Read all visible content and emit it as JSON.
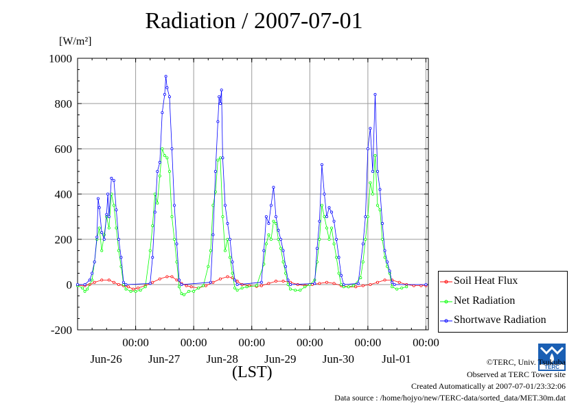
{
  "chart_data": {
    "type": "line",
    "title": "Radiation / 2007-07-01",
    "ylabel_unit": "[W/m²]",
    "xlabel": "(LST)",
    "ylim": [
      -200,
      1000
    ],
    "yticks": [
      "1000",
      "800",
      "600",
      "400",
      "200",
      "0",
      "-200"
    ],
    "xticks": [
      {
        "time": "00:00",
        "date": "Jun-26"
      },
      {
        "time": "00:00",
        "date": "Jun-27"
      },
      {
        "time": "00:00",
        "date": "Jun-28"
      },
      {
        "time": "00:00",
        "date": "Jun-29"
      },
      {
        "time": "00:00",
        "date": "Jun-30"
      },
      {
        "time": "00:00",
        "date": "Jul-01"
      }
    ],
    "x_unit": "hours from 2007-06-25 00:00 LST",
    "xlim": [
      0,
      145
    ],
    "grid": true,
    "legend_position": "bottom-right",
    "series": [
      {
        "name": "Soil Heat Flux",
        "color": "#ff0000",
        "marker": "circle",
        "values": [
          [
            0,
            -5
          ],
          [
            3,
            -5
          ],
          [
            5,
            0
          ],
          [
            7,
            10
          ],
          [
            10,
            20
          ],
          [
            13,
            20
          ],
          [
            15,
            10
          ],
          [
            17,
            0
          ],
          [
            19,
            -5
          ],
          [
            21,
            -10
          ],
          [
            23,
            -20
          ],
          [
            25,
            -15
          ],
          [
            28,
            -5
          ],
          [
            31,
            10
          ],
          [
            34,
            25
          ],
          [
            37,
            35
          ],
          [
            39,
            35
          ],
          [
            41,
            20
          ],
          [
            43,
            5
          ],
          [
            45,
            -5
          ],
          [
            47,
            -10
          ],
          [
            50,
            -15
          ],
          [
            53,
            -5
          ],
          [
            56,
            10
          ],
          [
            59,
            25
          ],
          [
            62,
            35
          ],
          [
            64,
            30
          ],
          [
            66,
            15
          ],
          [
            68,
            0
          ],
          [
            71,
            -5
          ],
          [
            74,
            -8
          ],
          [
            76,
            -5
          ],
          [
            79,
            5
          ],
          [
            82,
            15
          ],
          [
            85,
            15
          ],
          [
            88,
            10
          ],
          [
            91,
            0
          ],
          [
            94,
            -5
          ],
          [
            97,
            0
          ],
          [
            100,
            5
          ],
          [
            103,
            10
          ],
          [
            106,
            5
          ],
          [
            109,
            -5
          ],
          [
            112,
            -10
          ],
          [
            115,
            -10
          ],
          [
            118,
            -5
          ],
          [
            121,
            0
          ],
          [
            124,
            10
          ],
          [
            127,
            20
          ],
          [
            130,
            20
          ],
          [
            133,
            10
          ],
          [
            136,
            0
          ],
          [
            139,
            -5
          ],
          [
            142,
            -5
          ],
          [
            144,
            -5
          ]
        ]
      },
      {
        "name": "Net Radiation",
        "color": "#00ff00",
        "marker": "circle",
        "values": [
          [
            0,
            -5
          ],
          [
            2,
            -15
          ],
          [
            3,
            -30
          ],
          [
            4,
            -20
          ],
          [
            6,
            20
          ],
          [
            7,
            100
          ],
          [
            8,
            200
          ],
          [
            9,
            250
          ],
          [
            10,
            150
          ],
          [
            11,
            220
          ],
          [
            12,
            300
          ],
          [
            13,
            250
          ],
          [
            14,
            400
          ],
          [
            15,
            350
          ],
          [
            16,
            250
          ],
          [
            17,
            150
          ],
          [
            18,
            80
          ],
          [
            19,
            0
          ],
          [
            20,
            -20
          ],
          [
            22,
            -30
          ],
          [
            24,
            -30
          ],
          [
            26,
            -25
          ],
          [
            28,
            -10
          ],
          [
            30,
            150
          ],
          [
            31,
            260
          ],
          [
            32,
            400
          ],
          [
            33,
            360
          ],
          [
            34,
            480
          ],
          [
            35,
            600
          ],
          [
            36,
            570
          ],
          [
            37,
            560
          ],
          [
            38,
            500
          ],
          [
            39,
            300
          ],
          [
            40,
            200
          ],
          [
            41,
            100
          ],
          [
            42,
            -10
          ],
          [
            43,
            -40
          ],
          [
            44,
            -45
          ],
          [
            46,
            -30
          ],
          [
            48,
            -30
          ],
          [
            50,
            -15
          ],
          [
            52,
            -5
          ],
          [
            54,
            80
          ],
          [
            55,
            150
          ],
          [
            56,
            350
          ],
          [
            57,
            410
          ],
          [
            58,
            550
          ],
          [
            59,
            560
          ],
          [
            60,
            300
          ],
          [
            61,
            150
          ],
          [
            62,
            200
          ],
          [
            63,
            120
          ],
          [
            64,
            50
          ],
          [
            65,
            -15
          ],
          [
            66,
            -25
          ],
          [
            68,
            -15
          ],
          [
            70,
            -10
          ],
          [
            74,
            -5
          ],
          [
            77,
            90
          ],
          [
            78,
            180
          ],
          [
            79,
            220
          ],
          [
            80,
            200
          ],
          [
            81,
            280
          ],
          [
            82,
            270
          ],
          [
            83,
            200
          ],
          [
            84,
            160
          ],
          [
            85,
            100
          ],
          [
            86,
            50
          ],
          [
            87,
            0
          ],
          [
            88,
            -20
          ],
          [
            90,
            -25
          ],
          [
            92,
            -25
          ],
          [
            94,
            -10
          ],
          [
            96,
            0
          ],
          [
            98,
            20
          ],
          [
            99,
            100
          ],
          [
            100,
            200
          ],
          [
            101,
            350
          ],
          [
            102,
            300
          ],
          [
            103,
            250
          ],
          [
            104,
            200
          ],
          [
            105,
            250
          ],
          [
            106,
            180
          ],
          [
            107,
            120
          ],
          [
            108,
            50
          ],
          [
            109,
            0
          ],
          [
            110,
            -10
          ],
          [
            112,
            -10
          ],
          [
            114,
            -5
          ],
          [
            117,
            30
          ],
          [
            118,
            100
          ],
          [
            119,
            200
          ],
          [
            120,
            300
          ],
          [
            121,
            450
          ],
          [
            122,
            400
          ],
          [
            123,
            570
          ],
          [
            124,
            350
          ],
          [
            125,
            330
          ],
          [
            126,
            200
          ],
          [
            127,
            120
          ],
          [
            128,
            80
          ],
          [
            129,
            50
          ],
          [
            130,
            -10
          ],
          [
            132,
            -20
          ],
          [
            134,
            -15
          ],
          [
            136,
            -10
          ]
        ]
      },
      {
        "name": "Shortwave Radiation",
        "color": "#0000ff",
        "marker": "circle",
        "values": [
          [
            0,
            0
          ],
          [
            3,
            0
          ],
          [
            5,
            20
          ],
          [
            6,
            50
          ],
          [
            7,
            100
          ],
          [
            8,
            210
          ],
          [
            8.5,
            380
          ],
          [
            9,
            340
          ],
          [
            10,
            230
          ],
          [
            11,
            200
          ],
          [
            12,
            310
          ],
          [
            12.5,
            400
          ],
          [
            13,
            300
          ],
          [
            14,
            470
          ],
          [
            15,
            460
          ],
          [
            16,
            330
          ],
          [
            17,
            200
          ],
          [
            18,
            120
          ],
          [
            19,
            10
          ],
          [
            20,
            0
          ],
          [
            30,
            5
          ],
          [
            31,
            120
          ],
          [
            32,
            320
          ],
          [
            33,
            500
          ],
          [
            34,
            540
          ],
          [
            35,
            760
          ],
          [
            36,
            840
          ],
          [
            36.5,
            920
          ],
          [
            37,
            870
          ],
          [
            38,
            830
          ],
          [
            39,
            600
          ],
          [
            40,
            350
          ],
          [
            41,
            180
          ],
          [
            42,
            20
          ],
          [
            43,
            0
          ],
          [
            55,
            10
          ],
          [
            56,
            220
          ],
          [
            57,
            500
          ],
          [
            58,
            720
          ],
          [
            58.5,
            830
          ],
          [
            59,
            800
          ],
          [
            59.5,
            860
          ],
          [
            60,
            560
          ],
          [
            61,
            350
          ],
          [
            62,
            270
          ],
          [
            63,
            200
          ],
          [
            64,
            100
          ],
          [
            65,
            20
          ],
          [
            66,
            0
          ],
          [
            76,
            10
          ],
          [
            77,
            150
          ],
          [
            78,
            300
          ],
          [
            79,
            270
          ],
          [
            80,
            350
          ],
          [
            81,
            430
          ],
          [
            82,
            300
          ],
          [
            83,
            240
          ],
          [
            84,
            200
          ],
          [
            85,
            150
          ],
          [
            86,
            80
          ],
          [
            87,
            20
          ],
          [
            88,
            0
          ],
          [
            98,
            5
          ],
          [
            99,
            160
          ],
          [
            100,
            280
          ],
          [
            101,
            530
          ],
          [
            102,
            400
          ],
          [
            103,
            300
          ],
          [
            104,
            340
          ],
          [
            105,
            320
          ],
          [
            106,
            280
          ],
          [
            107,
            200
          ],
          [
            108,
            120
          ],
          [
            109,
            40
          ],
          [
            110,
            0
          ],
          [
            116,
            5
          ],
          [
            118,
            180
          ],
          [
            119,
            300
          ],
          [
            120,
            600
          ],
          [
            121,
            690
          ],
          [
            122,
            500
          ],
          [
            123,
            840
          ],
          [
            124,
            500
          ],
          [
            125,
            420
          ],
          [
            126,
            270
          ],
          [
            127,
            150
          ],
          [
            128,
            100
          ],
          [
            129,
            60
          ],
          [
            130,
            10
          ],
          [
            131,
            0
          ],
          [
            144,
            0
          ]
        ]
      }
    ]
  },
  "footer": {
    "copyright": "©TERC, Univ. Tsukuba",
    "observed": "Observed at TERC Tower site",
    "created": "Created Automatically at 2007-07-01/23:32:06",
    "source": "Data source : /home/hojyo/new/TERC-data/sorted_data/MET.30m.dat"
  },
  "logo_text": "TERC"
}
